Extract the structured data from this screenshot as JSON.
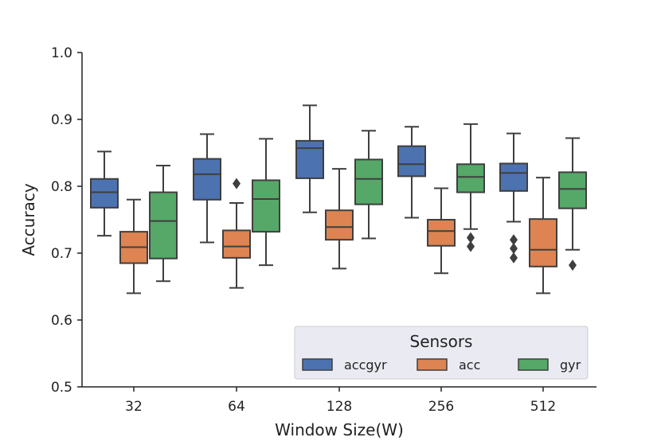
{
  "chart_data": {
    "type": "boxplot",
    "title": "",
    "xlabel": "Window Size(W)",
    "ylabel": "Accuracy",
    "ylim": [
      0.5,
      1.0
    ],
    "yticks": [
      "0.5",
      "0.6",
      "0.7",
      "0.8",
      "0.9",
      "1.0"
    ],
    "categories": [
      "32",
      "64",
      "128",
      "256",
      "512"
    ],
    "legend": {
      "title": "Sensors",
      "position": "lower-right",
      "entries": [
        "accgyr",
        "acc",
        "gyr"
      ]
    },
    "series": [
      {
        "name": "accgyr",
        "color": "#4C72B0",
        "boxes": [
          {
            "whisker_low": 0.726,
            "q1": 0.768,
            "median": 0.791,
            "q3": 0.811,
            "whisker_high": 0.852,
            "outliers": []
          },
          {
            "whisker_low": 0.716,
            "q1": 0.78,
            "median": 0.818,
            "q3": 0.841,
            "whisker_high": 0.878,
            "outliers": []
          },
          {
            "whisker_low": 0.761,
            "q1": 0.812,
            "median": 0.857,
            "q3": 0.868,
            "whisker_high": 0.921,
            "outliers": []
          },
          {
            "whisker_low": 0.753,
            "q1": 0.815,
            "median": 0.833,
            "q3": 0.86,
            "whisker_high": 0.889,
            "outliers": []
          },
          {
            "whisker_low": 0.747,
            "q1": 0.793,
            "median": 0.82,
            "q3": 0.834,
            "whisker_high": 0.879,
            "outliers": [
              0.693,
              0.707,
              0.72
            ]
          }
        ]
      },
      {
        "name": "acc",
        "color": "#DD8452",
        "boxes": [
          {
            "whisker_low": 0.64,
            "q1": 0.685,
            "median": 0.709,
            "q3": 0.732,
            "whisker_high": 0.78,
            "outliers": []
          },
          {
            "whisker_low": 0.648,
            "q1": 0.693,
            "median": 0.71,
            "q3": 0.734,
            "whisker_high": 0.775,
            "outliers": [
              0.804
            ]
          },
          {
            "whisker_low": 0.677,
            "q1": 0.72,
            "median": 0.739,
            "q3": 0.764,
            "whisker_high": 0.826,
            "outliers": []
          },
          {
            "whisker_low": 0.67,
            "q1": 0.711,
            "median": 0.733,
            "q3": 0.75,
            "whisker_high": 0.797,
            "outliers": []
          },
          {
            "whisker_low": 0.64,
            "q1": 0.68,
            "median": 0.705,
            "q3": 0.751,
            "whisker_high": 0.813,
            "outliers": []
          }
        ]
      },
      {
        "name": "gyr",
        "color": "#55A868",
        "boxes": [
          {
            "whisker_low": 0.658,
            "q1": 0.692,
            "median": 0.748,
            "q3": 0.791,
            "whisker_high": 0.831,
            "outliers": []
          },
          {
            "whisker_low": 0.682,
            "q1": 0.732,
            "median": 0.781,
            "q3": 0.809,
            "whisker_high": 0.871,
            "outliers": []
          },
          {
            "whisker_low": 0.722,
            "q1": 0.773,
            "median": 0.811,
            "q3": 0.84,
            "whisker_high": 0.883,
            "outliers": []
          },
          {
            "whisker_low": 0.736,
            "q1": 0.791,
            "median": 0.814,
            "q3": 0.833,
            "whisker_high": 0.893,
            "outliers": [
              0.71,
              0.723
            ]
          },
          {
            "whisker_low": 0.705,
            "q1": 0.767,
            "median": 0.796,
            "q3": 0.821,
            "whisker_high": 0.872,
            "outliers": [
              0.682
            ]
          }
        ]
      }
    ]
  }
}
